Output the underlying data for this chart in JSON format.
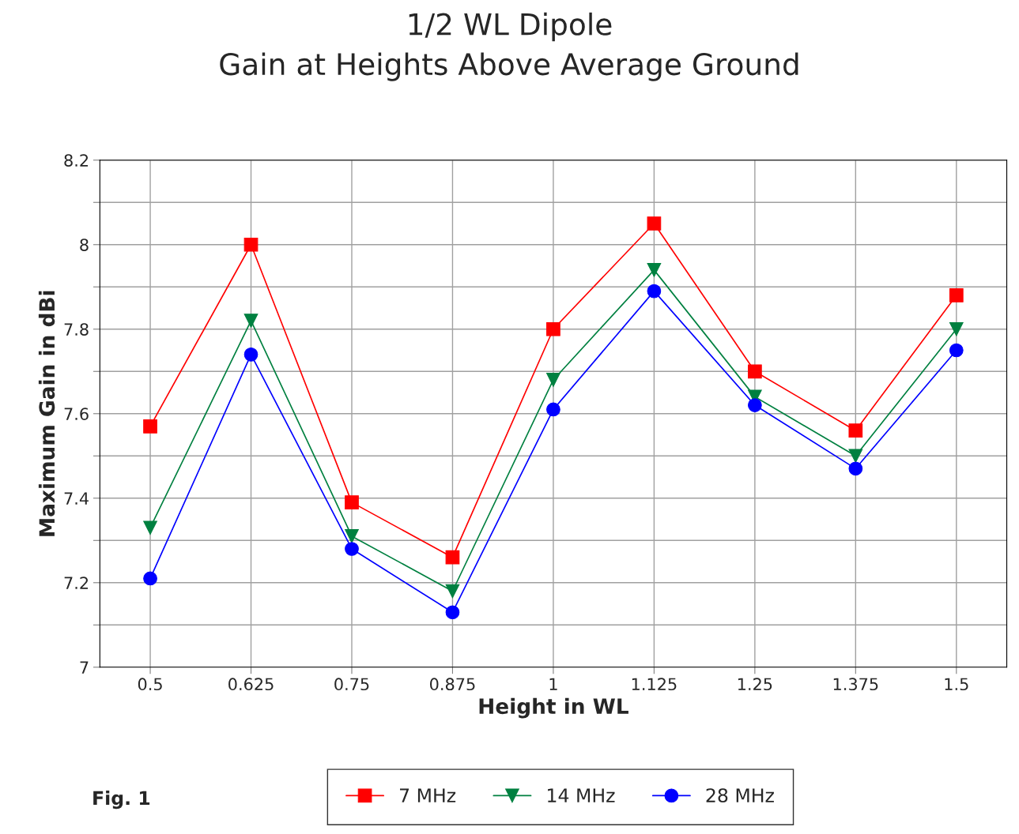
{
  "chart_data": {
    "type": "line",
    "title": "1/2 WL Dipole\nGain at Heights Above Average Ground",
    "xlabel": "Height in WL",
    "ylabel": "Maximum Gain in dBi",
    "categories": [
      "0.5",
      "0.625",
      "0.75",
      "0.875",
      "1",
      "1.125",
      "1.25",
      "1.375",
      "1.5"
    ],
    "series": [
      {
        "name": "7 MHz",
        "color": "#ff0000",
        "marker": "square",
        "values": [
          7.57,
          8.0,
          7.39,
          7.26,
          7.8,
          8.05,
          7.7,
          7.56,
          7.88
        ]
      },
      {
        "name": "14 MHz",
        "color": "#008040",
        "marker": "triangle",
        "values": [
          7.33,
          7.82,
          7.31,
          7.18,
          7.68,
          7.94,
          7.64,
          7.5,
          7.8
        ]
      },
      {
        "name": "28 MHz",
        "color": "#0000ff",
        "marker": "circle",
        "values": [
          7.21,
          7.74,
          7.28,
          7.13,
          7.61,
          7.89,
          7.62,
          7.47,
          7.75
        ]
      }
    ],
    "ylim": [
      7,
      8.2
    ],
    "yticks": [
      7,
      {
        "value": 7.1,
        "label": null
      },
      7.2,
      {
        "value": 7.3,
        "label": null
      },
      7.4,
      {
        "value": 7.5,
        "label": null
      },
      7.6,
      {
        "value": 7.7,
        "label": null
      },
      7.8,
      {
        "value": 7.9,
        "label": null
      },
      8,
      {
        "value": 8.1,
        "label": null
      },
      8.2
    ],
    "grid": true,
    "legend": "bottom",
    "line_style": "solid",
    "annotations": [
      "Fig. 1"
    ]
  }
}
